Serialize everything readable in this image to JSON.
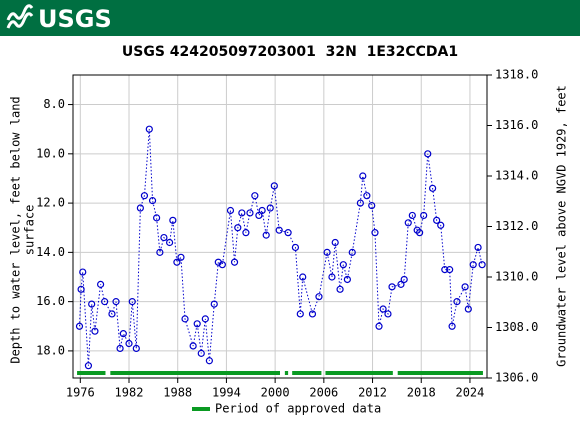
{
  "header": {
    "logo_text": "USGS"
  },
  "chart_data": {
    "type": "line",
    "title": "USGS 424205097203001  32N  1E32CCDA1",
    "ylabel": [
      "Depth to water level, feet below land",
      "surface"
    ],
    "y2label": "Groundwater level above NGVD 1929, feet",
    "color": "#0000cc",
    "grid": true,
    "y_inverted": true,
    "xlim": [
      1975.1,
      2026.1
    ],
    "xticks": [
      1976,
      1982,
      1988,
      1994,
      2000,
      2006,
      2012,
      2018,
      2024
    ],
    "ylim": [
      6.8,
      19.1
    ],
    "yticks": [
      {
        "value": 8,
        "label": "8.0"
      },
      {
        "value": 10,
        "label": "10.0"
      },
      {
        "value": 12,
        "label": "12.0"
      },
      {
        "value": 14,
        "label": "14.0"
      },
      {
        "value": 16,
        "label": "16.0"
      },
      {
        "value": 18,
        "label": "18.0"
      }
    ],
    "y2lim": [
      1306,
      1318
    ],
    "y2ticks": [
      {
        "value": 1306,
        "label": "1306.0"
      },
      {
        "value": 1308,
        "label": "1308.0"
      },
      {
        "value": 1310,
        "label": "1310.0"
      },
      {
        "value": 1312,
        "label": "1312.0"
      },
      {
        "value": 1314,
        "label": "1314.0"
      },
      {
        "value": 1316,
        "label": "1316.0"
      },
      {
        "value": 1318,
        "label": "1318.0"
      }
    ],
    "x": [
      1975.9,
      1976.1,
      1976.3,
      1977.0,
      1977.4,
      1977.8,
      1978.5,
      1979.0,
      1979.9,
      1980.4,
      1980.9,
      1981.3,
      1982.0,
      1982.4,
      1982.9,
      1983.4,
      1983.9,
      1984.5,
      1984.9,
      1985.4,
      1985.8,
      1986.3,
      1987.0,
      1987.4,
      1987.9,
      1988.4,
      1988.9,
      1989.9,
      1990.4,
      1990.9,
      1991.4,
      1991.9,
      1992.5,
      1993.0,
      1993.5,
      1994.5,
      1995.0,
      1995.4,
      1995.9,
      1996.4,
      1996.9,
      1997.5,
      1998.0,
      1998.4,
      1998.9,
      1999.4,
      1999.9,
      2000.5,
      2001.6,
      2002.5,
      2003.1,
      2003.4,
      2004.6,
      2005.4,
      2006.4,
      2007.0,
      2007.4,
      2008.0,
      2008.4,
      2008.9,
      2009.5,
      2010.5,
      2010.8,
      2011.3,
      2011.9,
      2012.3,
      2012.8,
      2013.3,
      2013.9,
      2014.4,
      2015.5,
      2015.9,
      2016.4,
      2016.9,
      2017.5,
      2017.8,
      2018.3,
      2018.8,
      2019.4,
      2019.9,
      2020.4,
      2020.9,
      2021.5,
      2021.8,
      2022.4,
      2023.4,
      2023.8,
      2024.4,
      2025.0,
      2025.5
    ],
    "y": [
      17.0,
      15.5,
      14.8,
      18.6,
      16.1,
      17.2,
      15.3,
      16.0,
      16.5,
      16.0,
      17.9,
      17.3,
      17.7,
      16.0,
      17.9,
      12.2,
      11.7,
      9.0,
      11.9,
      12.6,
      14.0,
      13.4,
      13.6,
      12.7,
      14.4,
      14.2,
      16.7,
      17.8,
      16.9,
      18.1,
      16.7,
      18.4,
      16.1,
      14.4,
      14.5,
      12.3,
      14.4,
      13.0,
      12.4,
      13.2,
      12.4,
      11.7,
      12.5,
      12.3,
      13.3,
      12.2,
      11.3,
      13.1,
      13.2,
      13.8,
      16.5,
      15.0,
      16.5,
      15.8,
      14.0,
      15.0,
      13.6,
      15.5,
      14.5,
      15.1,
      14.0,
      12.0,
      10.9,
      11.7,
      12.1,
      13.2,
      17.0,
      16.3,
      16.5,
      15.4,
      15.3,
      15.1,
      12.8,
      12.5,
      13.1,
      13.2,
      12.5,
      10.0,
      11.4,
      12.7,
      12.9,
      14.7,
      14.7,
      17.0,
      16.0,
      15.4,
      16.3,
      14.5,
      13.8,
      14.5
    ],
    "approved_periods": {
      "name": "Period of approved data",
      "color": "#0a9a22",
      "ranges": [
        [
          1975.6,
          1979.1
        ],
        [
          1979.7,
          2000.6
        ],
        [
          2001.2,
          2001.6
        ],
        [
          2002.1,
          2005.7
        ],
        [
          2006.2,
          2014.5
        ],
        [
          2015.1,
          2025.6
        ]
      ]
    }
  }
}
